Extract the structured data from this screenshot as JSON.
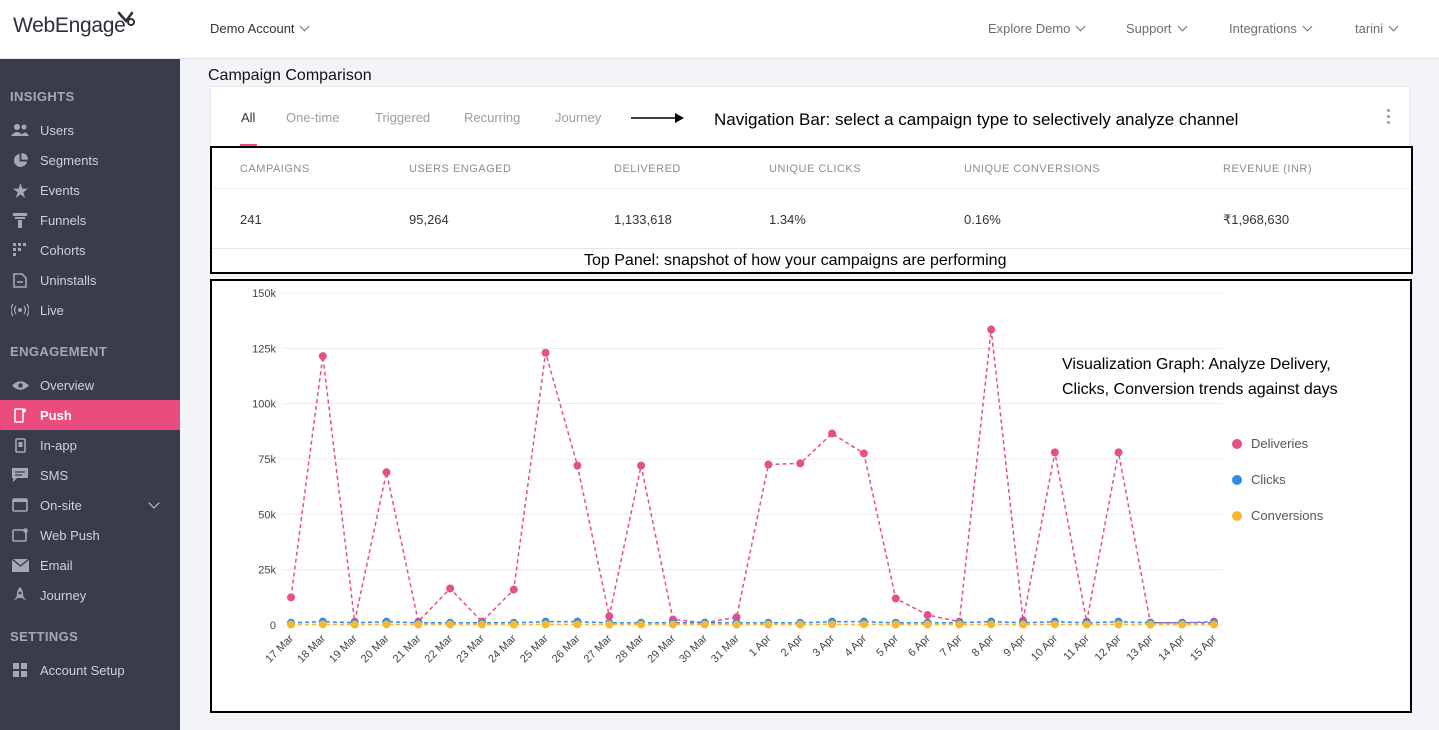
{
  "header": {
    "logo": "WebEngage",
    "account": "Demo Account",
    "nav": [
      "Explore Demo",
      "Support",
      "Integrations",
      "tarini"
    ]
  },
  "sidebar": {
    "insights_title": "INSIGHTS",
    "insights": [
      {
        "label": "Users",
        "icon": "users-icon"
      },
      {
        "label": "Segments",
        "icon": "pie-icon"
      },
      {
        "label": "Events",
        "icon": "star-icon"
      },
      {
        "label": "Funnels",
        "icon": "funnel-icon"
      },
      {
        "label": "Cohorts",
        "icon": "grid-icon"
      },
      {
        "label": "Uninstalls",
        "icon": "uninstall-icon"
      },
      {
        "label": "Live",
        "icon": "broadcast-icon"
      }
    ],
    "engagement_title": "ENGAGEMENT",
    "engagement": [
      {
        "label": "Overview",
        "icon": "eye-icon"
      },
      {
        "label": "Push",
        "icon": "phone-icon",
        "active": true
      },
      {
        "label": "In-app",
        "icon": "inapp-icon"
      },
      {
        "label": "SMS",
        "icon": "sms-icon"
      },
      {
        "label": "On-site",
        "icon": "window-icon",
        "expandable": true
      },
      {
        "label": "Web Push",
        "icon": "webpush-icon"
      },
      {
        "label": "Email",
        "icon": "mail-icon"
      },
      {
        "label": "Journey",
        "icon": "rocket-icon"
      }
    ],
    "settings_title": "SETTINGS",
    "settings": [
      {
        "label": "Account Setup",
        "icon": "grid-icon"
      }
    ]
  },
  "main": {
    "title": "Campaign Comparison",
    "tabs": [
      "All",
      "One-time",
      "Triggered",
      "Recurring",
      "Journey"
    ],
    "active_tab": "All",
    "nav_annotation": "Navigation Bar: select a campaign type to selectively analyze channel",
    "stats": {
      "headers": [
        "CAMPAIGNS",
        "USERS ENGAGED",
        "DELIVERED",
        "UNIQUE CLICKS",
        "UNIQUE CONVERSIONS",
        "REVENUE (INR)"
      ],
      "values": [
        "241",
        "95,264",
        "1,133,618",
        "1.34%",
        "0.16%",
        "₹1,968,630"
      ]
    },
    "top_annotation": "Top Panel: snapshot of how your campaigns are performing",
    "chart_annotation_1": "Visualization Graph: Analyze Delivery,",
    "chart_annotation_2": "Clicks, Conversion trends against days"
  },
  "chart_data": {
    "type": "line",
    "categories": [
      "17 Mar",
      "18 Mar",
      "19 Mar",
      "20 Mar",
      "21 Mar",
      "22 Mar",
      "23 Mar",
      "24 Mar",
      "25 Mar",
      "26 Mar",
      "27 Mar",
      "28 Mar",
      "29 Mar",
      "30 Mar",
      "31 Mar",
      "1 Apr",
      "2 Apr",
      "3 Apr",
      "4 Apr",
      "5 Apr",
      "6 Apr",
      "7 Apr",
      "8 Apr",
      "9 Apr",
      "10 Apr",
      "11 Apr",
      "12 Apr",
      "13 Apr",
      "14 Apr",
      "15 Apr"
    ],
    "y_ticks": [
      "0",
      "25k",
      "50k",
      "75k",
      "100k",
      "125k",
      "150k"
    ],
    "ylim": [
      0,
      150000
    ],
    "series": [
      {
        "name": "Deliveries",
        "color": "#e5508a",
        "values": [
          12500,
          121500,
          1500,
          69000,
          1500,
          16500,
          1500,
          16000,
          123000,
          72000,
          4000,
          72000,
          2500,
          1000,
          3500,
          72500,
          73000,
          86500,
          77500,
          12000,
          4500,
          1500,
          133500,
          2000,
          78000,
          1500,
          78000,
          1000,
          1000,
          1500
        ]
      },
      {
        "name": "Clicks",
        "color": "#2f8be6",
        "values": [
          1000,
          1500,
          1000,
          1500,
          1000,
          1000,
          1000,
          1000,
          1500,
          1500,
          1000,
          1000,
          1000,
          1000,
          1000,
          1000,
          1000,
          1500,
          1500,
          1000,
          1000,
          1000,
          1500,
          1000,
          1500,
          1000,
          1500,
          1000,
          1000,
          1000
        ]
      },
      {
        "name": "Conversions",
        "color": "#f5b82e",
        "values": [
          200,
          300,
          200,
          300,
          200,
          200,
          200,
          200,
          300,
          300,
          200,
          200,
          200,
          200,
          200,
          200,
          200,
          300,
          300,
          200,
          200,
          200,
          300,
          200,
          300,
          200,
          300,
          200,
          200,
          200
        ]
      }
    ],
    "grid": true,
    "legend": "right"
  }
}
